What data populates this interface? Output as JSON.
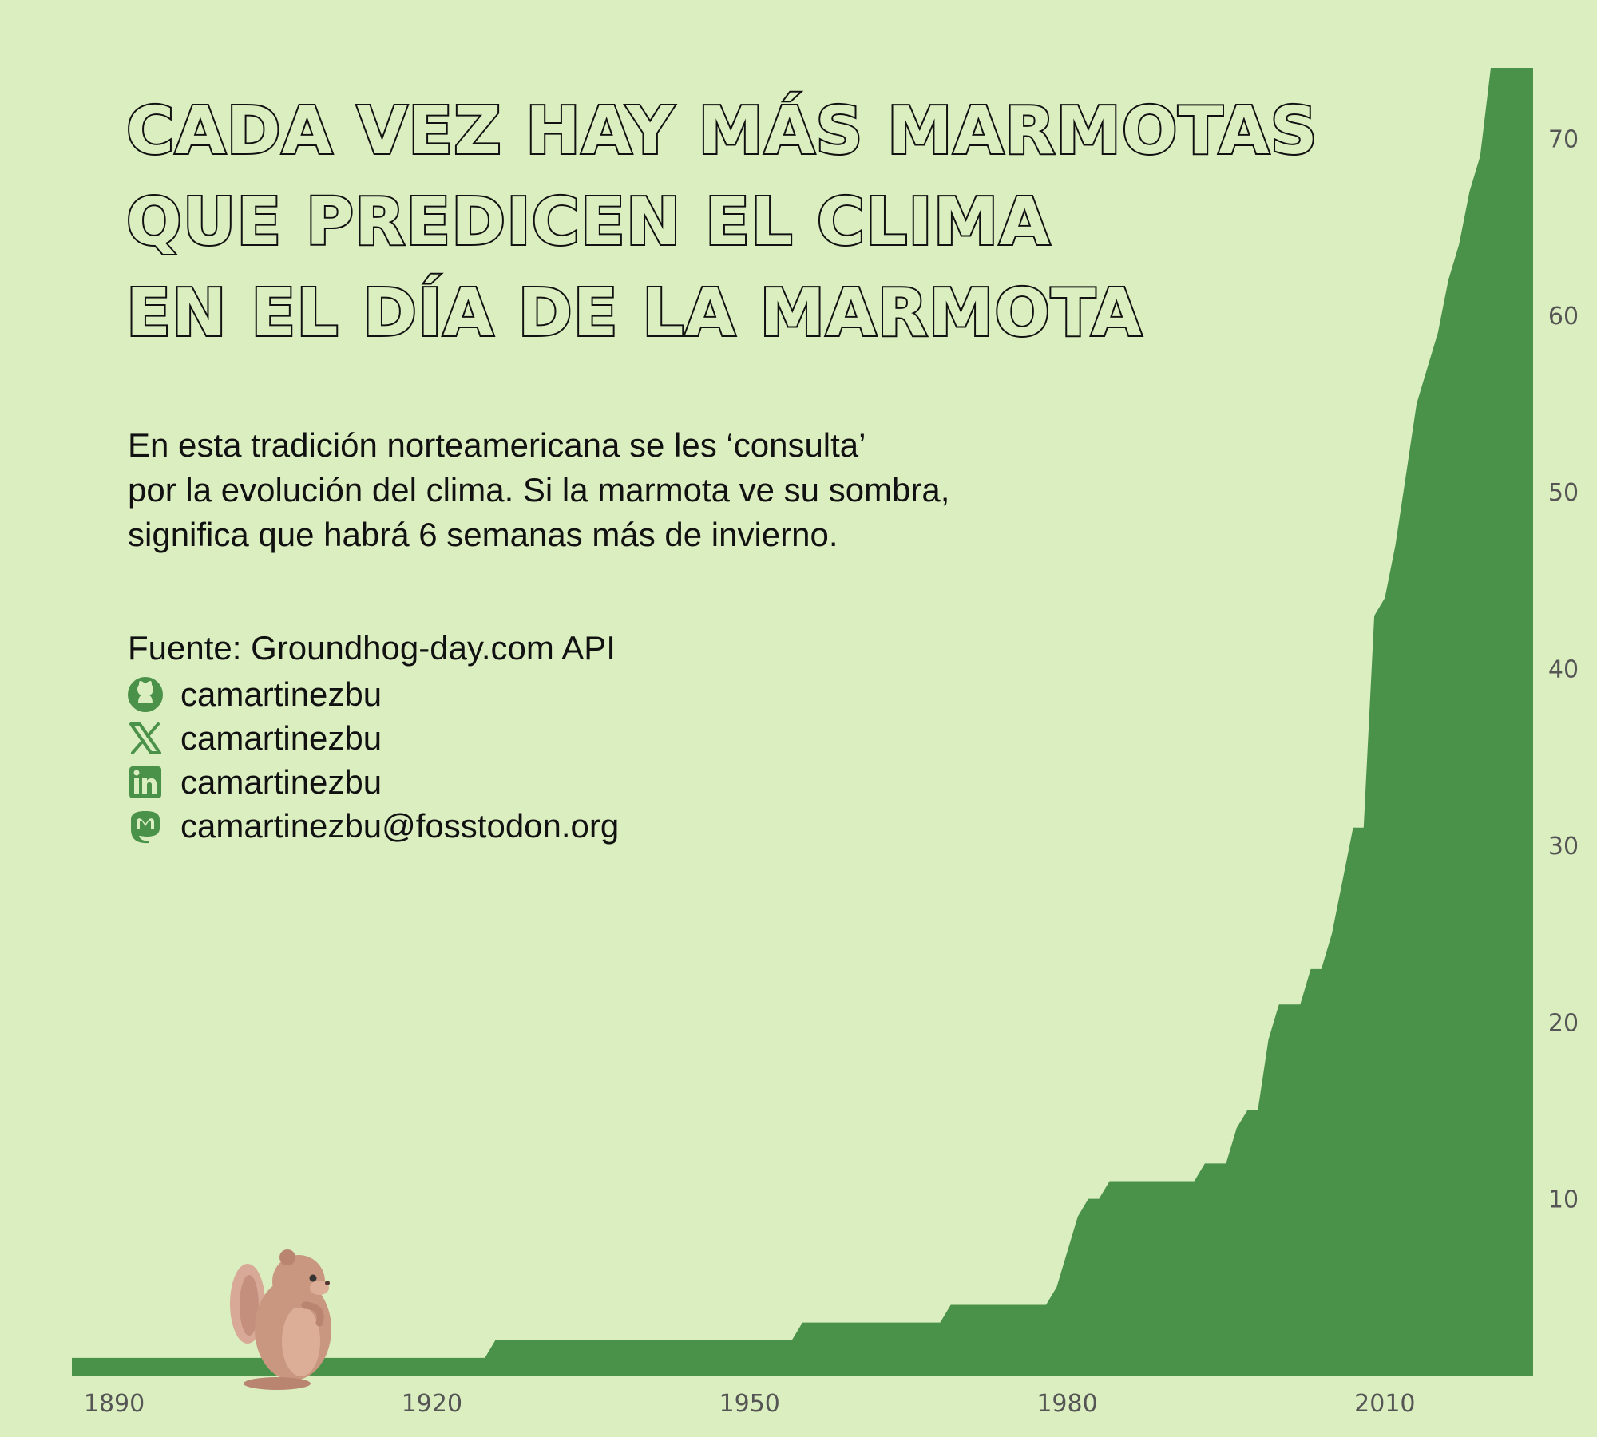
{
  "title_lines": [
    "Cada vez hay más marmotas",
    "que predicen el clima",
    "en el día de la marmota"
  ],
  "description_lines": [
    "En esta tradición norteamericana se les ‘consulta’",
    "por la evolución del clima. Si la marmota ve su sombra,",
    "significa que habrá 6 semanas más de invierno."
  ],
  "source": "Fuente: Groundhog-day.com API",
  "social": [
    {
      "icon": "github-icon",
      "label": "camartinezbu"
    },
    {
      "icon": "x-icon",
      "label": "camartinezbu"
    },
    {
      "icon": "linkedin-icon",
      "label": "camartinezbu"
    },
    {
      "icon": "mastodon-icon",
      "label": "camartinezbu@fosstodon.org"
    }
  ],
  "colors": {
    "background": "#dbeec0",
    "area": "#4a914a",
    "icon": "#4a914a",
    "text": "#111111",
    "tick": "#555555"
  },
  "chart_data": {
    "type": "area",
    "title": "Cada vez hay más marmotas que predicen el clima en el día de la marmota",
    "xlabel": "",
    "ylabel": "",
    "xlim": [
      1886,
      2024
    ],
    "ylim": [
      0,
      74
    ],
    "x_ticks": [
      1890,
      1920,
      1950,
      1980,
      2010
    ],
    "y_ticks": [
      10,
      20,
      30,
      40,
      50,
      60,
      70
    ],
    "y_axis_position": "right",
    "grid": false,
    "x": [
      1886,
      1925,
      1926,
      1954,
      1955,
      1968,
      1969,
      1978,
      1979,
      1980,
      1981,
      1982,
      1983,
      1984,
      1985,
      1992,
      1993,
      1995,
      1996,
      1997,
      1998,
      1999,
      2000,
      2002,
      2003,
      2004,
      2005,
      2006,
      2007,
      2008,
      2009,
      2010,
      2011,
      2012,
      2013,
      2014,
      2015,
      2016,
      2017,
      2018,
      2019,
      2020,
      2021,
      2022,
      2023
    ],
    "y": [
      1,
      1,
      2,
      2,
      3,
      3,
      4,
      4,
      5,
      7,
      9,
      10,
      10,
      11,
      11,
      11,
      12,
      12,
      14,
      15,
      15,
      19,
      21,
      21,
      23,
      23,
      25,
      28,
      31,
      31,
      43,
      44,
      47,
      51,
      55,
      57,
      59,
      62,
      64,
      67,
      69,
      74,
      74,
      74,
      74
    ]
  }
}
